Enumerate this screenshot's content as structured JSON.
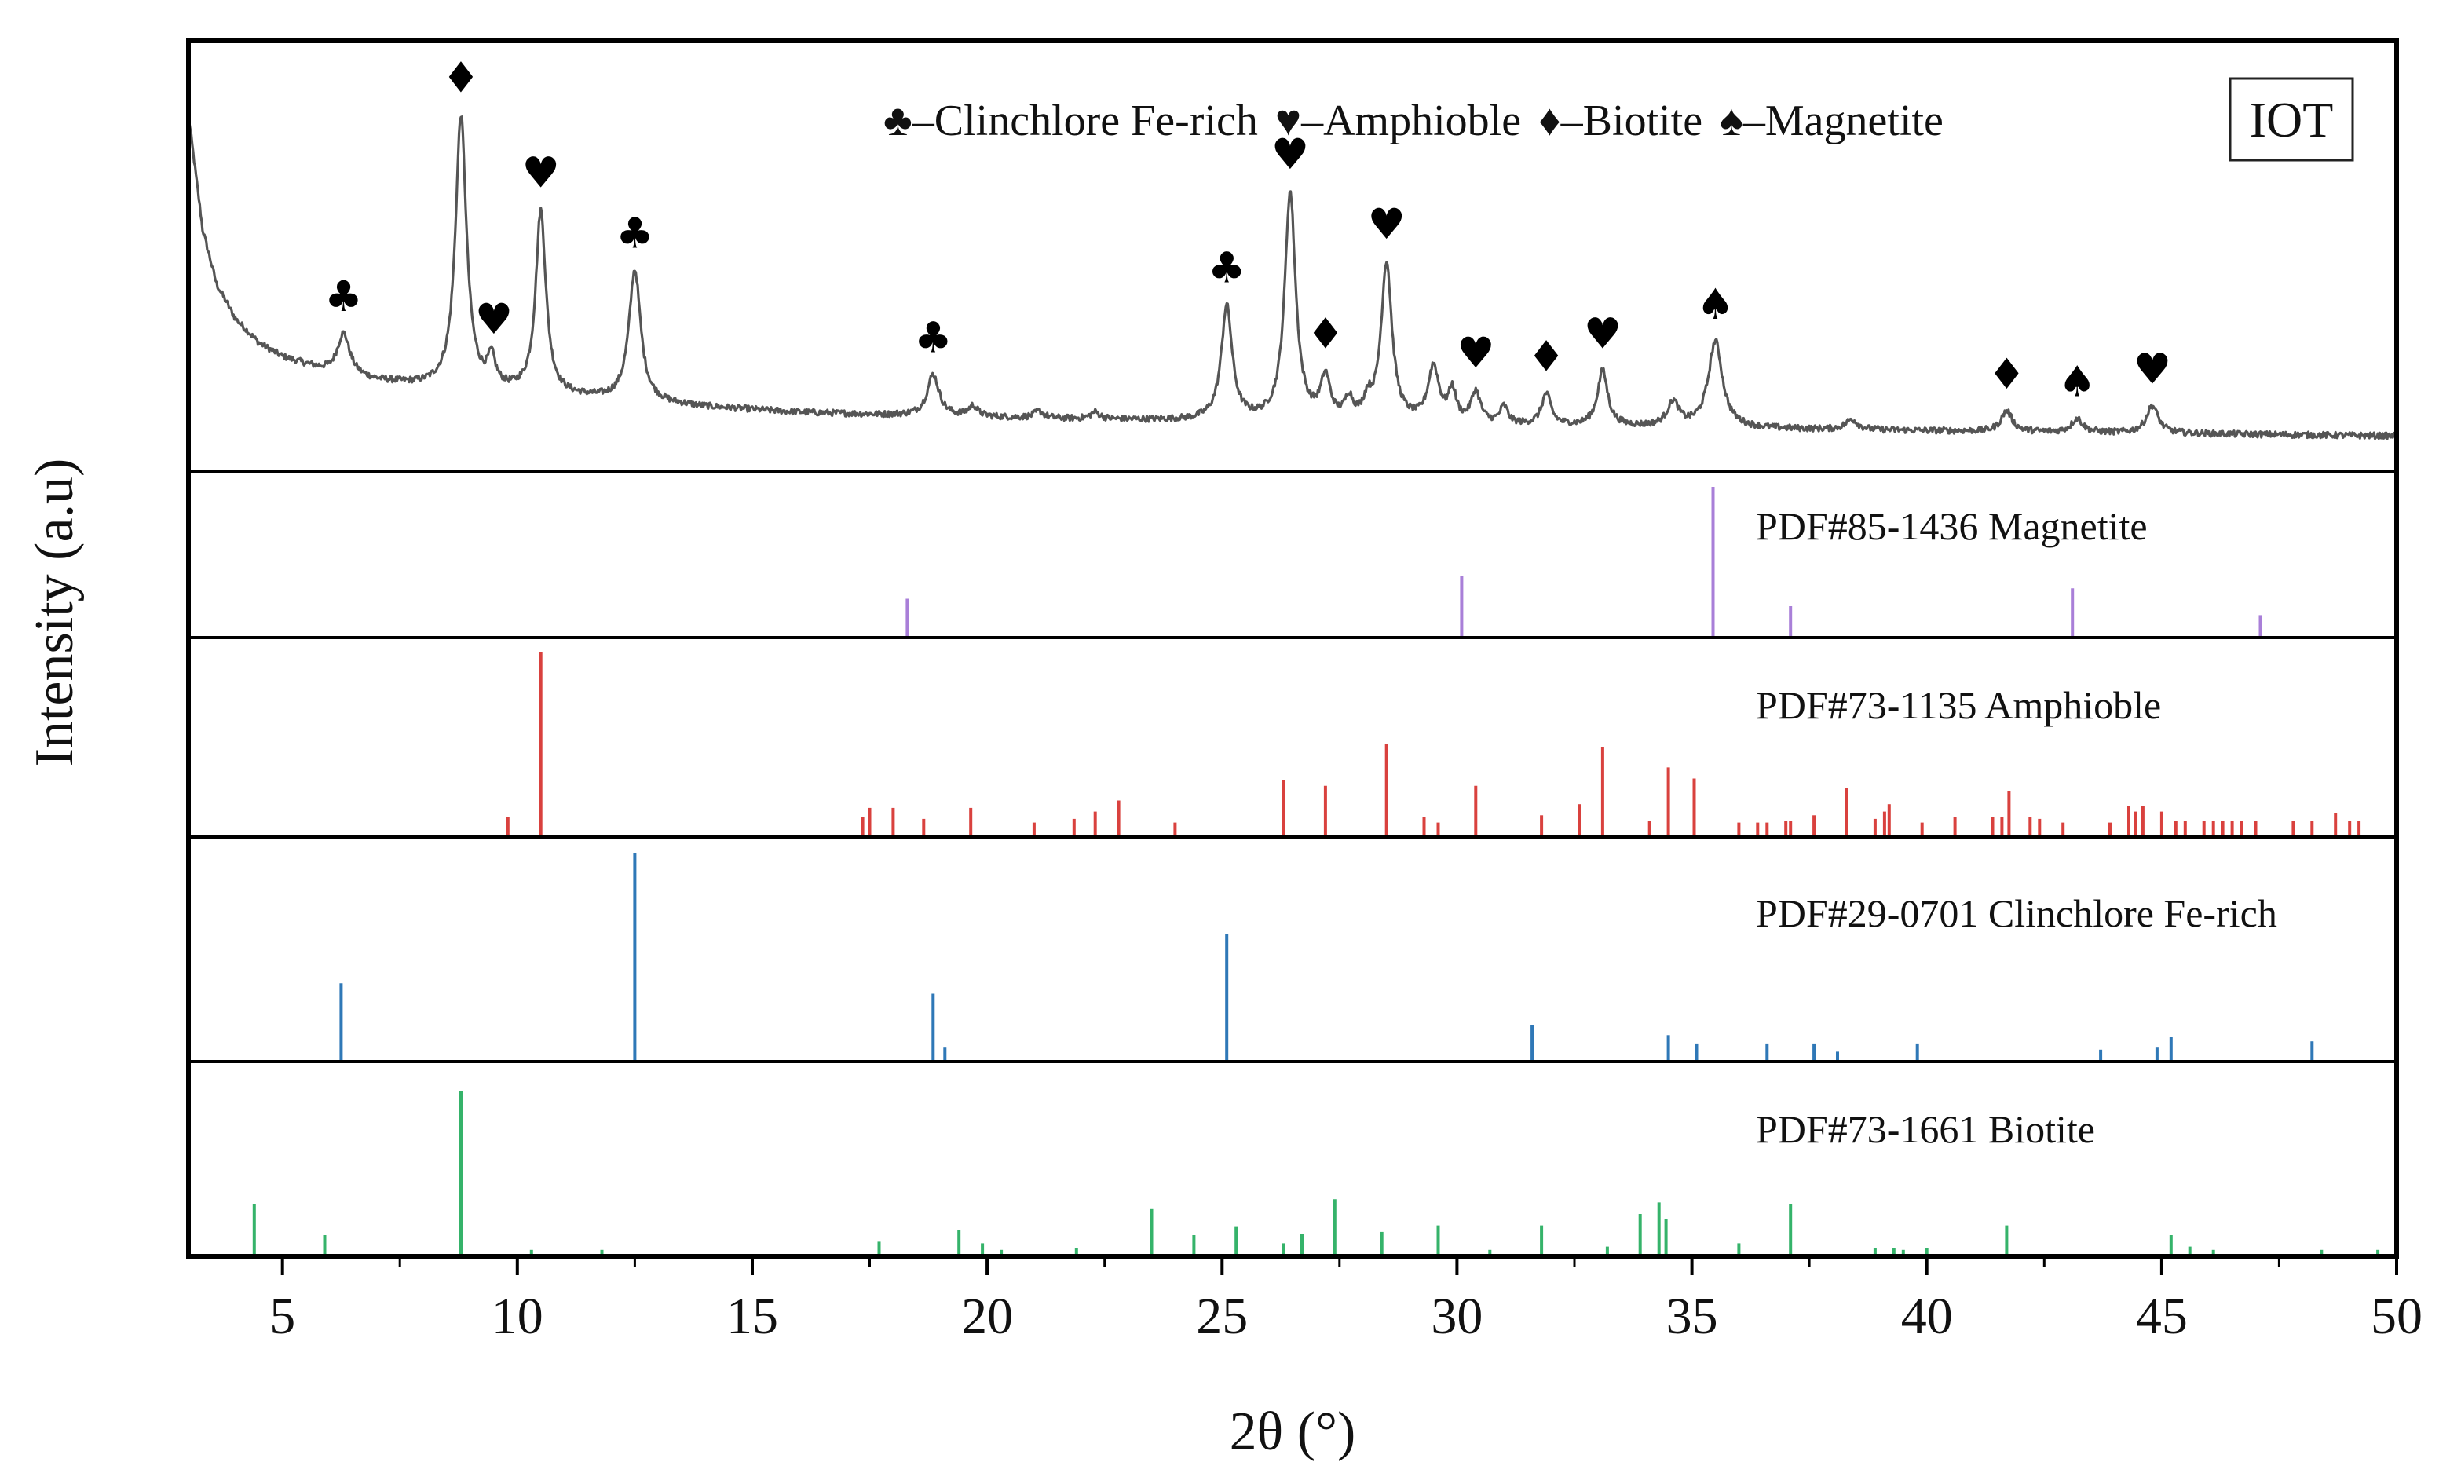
{
  "chart_data": {
    "type": "line",
    "xlabel": "2θ (°)",
    "ylabel": "Intensity (a.u)",
    "xlim": [
      3,
      50
    ],
    "xticks": [
      5,
      10,
      15,
      20,
      25,
      30,
      35,
      40,
      45,
      50
    ],
    "sample_label": "IOT",
    "legend": {
      "placement": "top",
      "entries": [
        {
          "symbol": "♣",
          "text": "–Clinchlore Fe-rich",
          "phase": "clinochlore"
        },
        {
          "symbol": "♥",
          "text": "–Amphioble",
          "phase": "amphibole"
        },
        {
          "symbol": "♦",
          "text": "–Biotite",
          "phase": "biotite"
        },
        {
          "symbol": "♠",
          "text": "–Magnetite",
          "phase": "magnetite"
        }
      ]
    },
    "pattern": {
      "color": "#555555",
      "background": [
        [
          3.0,
          0.95
        ],
        [
          3.3,
          0.62
        ],
        [
          3.6,
          0.46
        ],
        [
          4.0,
          0.36
        ],
        [
          4.5,
          0.29
        ],
        [
          5.0,
          0.25
        ],
        [
          6.0,
          0.205
        ],
        [
          7.0,
          0.18
        ],
        [
          8.0,
          0.165
        ],
        [
          10.0,
          0.145
        ],
        [
          12.0,
          0.125
        ],
        [
          14.0,
          0.105
        ],
        [
          16.0,
          0.09
        ],
        [
          18.0,
          0.082
        ],
        [
          20.0,
          0.076
        ],
        [
          22.0,
          0.07
        ],
        [
          24.0,
          0.066
        ],
        [
          26.0,
          0.062
        ],
        [
          28.0,
          0.058
        ],
        [
          30.0,
          0.054
        ],
        [
          32.0,
          0.05
        ],
        [
          35.0,
          0.045
        ],
        [
          38.0,
          0.04
        ],
        [
          42.0,
          0.034
        ],
        [
          46.0,
          0.028
        ],
        [
          50.0,
          0.022
        ]
      ],
      "peaks": [
        {
          "x": 6.3,
          "y": 0.12,
          "w": 0.16
        },
        {
          "x": 8.8,
          "y": 0.79,
          "w": 0.14
        },
        {
          "x": 9.45,
          "y": 0.08,
          "w": 0.1
        },
        {
          "x": 10.5,
          "y": 0.53,
          "w": 0.13
        },
        {
          "x": 12.5,
          "y": 0.38,
          "w": 0.15
        },
        {
          "x": 18.85,
          "y": 0.12,
          "w": 0.15
        },
        {
          "x": 19.7,
          "y": 0.03,
          "w": 0.12
        },
        {
          "x": 21.1,
          "y": 0.02,
          "w": 0.12
        },
        {
          "x": 22.3,
          "y": 0.02,
          "w": 0.12
        },
        {
          "x": 25.1,
          "y": 0.33,
          "w": 0.14
        },
        {
          "x": 26.45,
          "y": 0.66,
          "w": 0.14
        },
        {
          "x": 27.2,
          "y": 0.12,
          "w": 0.12
        },
        {
          "x": 27.7,
          "y": 0.06,
          "w": 0.1
        },
        {
          "x": 28.1,
          "y": 0.05,
          "w": 0.1
        },
        {
          "x": 28.5,
          "y": 0.46,
          "w": 0.14
        },
        {
          "x": 29.5,
          "y": 0.16,
          "w": 0.14
        },
        {
          "x": 29.9,
          "y": 0.09,
          "w": 0.1
        },
        {
          "x": 30.4,
          "y": 0.09,
          "w": 0.12
        },
        {
          "x": 31.0,
          "y": 0.05,
          "w": 0.1
        },
        {
          "x": 31.9,
          "y": 0.09,
          "w": 0.12
        },
        {
          "x": 33.1,
          "y": 0.16,
          "w": 0.13
        },
        {
          "x": 34.6,
          "y": 0.07,
          "w": 0.15
        },
        {
          "x": 35.5,
          "y": 0.25,
          "w": 0.18
        },
        {
          "x": 38.4,
          "y": 0.03,
          "w": 0.15
        },
        {
          "x": 41.7,
          "y": 0.06,
          "w": 0.14
        },
        {
          "x": 43.2,
          "y": 0.04,
          "w": 0.14
        },
        {
          "x": 44.8,
          "y": 0.08,
          "w": 0.15
        }
      ],
      "markers": [
        {
          "x": 6.3,
          "symbol": "♣"
        },
        {
          "x": 8.8,
          "symbol": "♦"
        },
        {
          "x": 9.5,
          "symbol": "♥"
        },
        {
          "x": 10.5,
          "symbol": "♥"
        },
        {
          "x": 12.5,
          "symbol": "♣"
        },
        {
          "x": 18.85,
          "symbol": "♣"
        },
        {
          "x": 25.1,
          "symbol": "♣"
        },
        {
          "x": 26.45,
          "symbol": "♥"
        },
        {
          "x": 27.2,
          "symbol": "♦"
        },
        {
          "x": 28.5,
          "symbol": "♥"
        },
        {
          "x": 30.4,
          "symbol": "♥"
        },
        {
          "x": 31.9,
          "symbol": "♦"
        },
        {
          "x": 33.1,
          "symbol": "♥"
        },
        {
          "x": 35.5,
          "symbol": "♠"
        },
        {
          "x": 41.7,
          "symbol": "♦"
        },
        {
          "x": 43.2,
          "symbol": "♠"
        },
        {
          "x": 44.8,
          "symbol": "♥"
        }
      ]
    },
    "references": [
      {
        "label": "PDF#85-1436 Magnetite",
        "color": "#a97fd8",
        "sticks": [
          [
            18.3,
            0.25
          ],
          [
            30.1,
            0.4
          ],
          [
            35.45,
            1.0
          ],
          [
            37.1,
            0.2
          ],
          [
            43.1,
            0.32
          ],
          [
            47.1,
            0.14
          ]
        ]
      },
      {
        "label": "PDF#73-1135 Amphioble",
        "color": "#d9413e",
        "sticks": [
          [
            9.8,
            0.1
          ],
          [
            10.5,
            1.0
          ],
          [
            17.35,
            0.1
          ],
          [
            17.5,
            0.15
          ],
          [
            18.0,
            0.15
          ],
          [
            18.65,
            0.09
          ],
          [
            19.65,
            0.15
          ],
          [
            21.0,
            0.07
          ],
          [
            21.85,
            0.09
          ],
          [
            22.3,
            0.13
          ],
          [
            22.8,
            0.19
          ],
          [
            24.0,
            0.07
          ],
          [
            26.3,
            0.3
          ],
          [
            27.2,
            0.27
          ],
          [
            28.5,
            0.5
          ],
          [
            29.3,
            0.1
          ],
          [
            29.6,
            0.07
          ],
          [
            30.4,
            0.27
          ],
          [
            31.8,
            0.11
          ],
          [
            32.6,
            0.17
          ],
          [
            33.1,
            0.48
          ],
          [
            34.1,
            0.08
          ],
          [
            34.5,
            0.37
          ],
          [
            35.05,
            0.31
          ],
          [
            36.0,
            0.07
          ],
          [
            36.4,
            0.07
          ],
          [
            36.6,
            0.07
          ],
          [
            37.0,
            0.08
          ],
          [
            37.1,
            0.08
          ],
          [
            37.6,
            0.11
          ],
          [
            38.3,
            0.26
          ],
          [
            38.9,
            0.09
          ],
          [
            39.1,
            0.13
          ],
          [
            39.2,
            0.17
          ],
          [
            39.9,
            0.07
          ],
          [
            40.6,
            0.1
          ],
          [
            41.4,
            0.1
          ],
          [
            41.6,
            0.1
          ],
          [
            41.75,
            0.24
          ],
          [
            42.2,
            0.1
          ],
          [
            42.4,
            0.09
          ],
          [
            42.9,
            0.07
          ],
          [
            43.9,
            0.07
          ],
          [
            44.3,
            0.16
          ],
          [
            44.45,
            0.13
          ],
          [
            44.6,
            0.16
          ],
          [
            45.0,
            0.13
          ],
          [
            45.3,
            0.08
          ],
          [
            45.5,
            0.08
          ],
          [
            45.9,
            0.08
          ],
          [
            46.1,
            0.08
          ],
          [
            46.3,
            0.08
          ],
          [
            46.5,
            0.08
          ],
          [
            46.7,
            0.08
          ],
          [
            47.0,
            0.08
          ],
          [
            47.8,
            0.08
          ],
          [
            48.2,
            0.08
          ],
          [
            48.7,
            0.12
          ],
          [
            49.0,
            0.08
          ],
          [
            49.2,
            0.08
          ],
          [
            50.0,
            0.08
          ]
        ]
      },
      {
        "label": "PDF#29-0701 Clinchlore Fe-rich",
        "color": "#2f78b7",
        "sticks": [
          [
            6.25,
            0.37
          ],
          [
            12.5,
            1.0
          ],
          [
            18.85,
            0.32
          ],
          [
            19.1,
            0.06
          ],
          [
            25.1,
            0.61
          ],
          [
            31.6,
            0.17
          ],
          [
            34.5,
            0.12
          ],
          [
            35.1,
            0.08
          ],
          [
            36.6,
            0.08
          ],
          [
            37.6,
            0.08
          ],
          [
            38.1,
            0.04
          ],
          [
            39.8,
            0.08
          ],
          [
            43.7,
            0.05
          ],
          [
            44.9,
            0.06
          ],
          [
            45.2,
            0.11
          ],
          [
            48.2,
            0.09
          ]
        ]
      },
      {
        "label": "PDF#73-1661 Biotite",
        "color": "#35b36a",
        "sticks": [
          [
            4.4,
            0.31
          ],
          [
            5.9,
            0.12
          ],
          [
            8.8,
            1.0
          ],
          [
            10.3,
            0.03
          ],
          [
            11.8,
            0.03
          ],
          [
            17.7,
            0.08
          ],
          [
            19.4,
            0.15
          ],
          [
            19.9,
            0.07
          ],
          [
            20.3,
            0.03
          ],
          [
            21.9,
            0.04
          ],
          [
            23.5,
            0.28
          ],
          [
            24.4,
            0.12
          ],
          [
            25.3,
            0.17
          ],
          [
            26.3,
            0.07
          ],
          [
            26.7,
            0.13
          ],
          [
            27.4,
            0.34
          ],
          [
            28.4,
            0.14
          ],
          [
            29.6,
            0.18
          ],
          [
            30.7,
            0.03
          ],
          [
            31.8,
            0.18
          ],
          [
            33.2,
            0.05
          ],
          [
            33.9,
            0.25
          ],
          [
            34.3,
            0.32
          ],
          [
            34.45,
            0.22
          ],
          [
            36.0,
            0.07
          ],
          [
            37.1,
            0.31
          ],
          [
            38.9,
            0.04
          ],
          [
            39.3,
            0.04
          ],
          [
            39.5,
            0.03
          ],
          [
            40.0,
            0.04
          ],
          [
            41.7,
            0.18
          ],
          [
            45.2,
            0.12
          ],
          [
            45.6,
            0.05
          ],
          [
            46.1,
            0.03
          ],
          [
            48.4,
            0.03
          ],
          [
            49.6,
            0.03
          ]
        ]
      }
    ]
  }
}
